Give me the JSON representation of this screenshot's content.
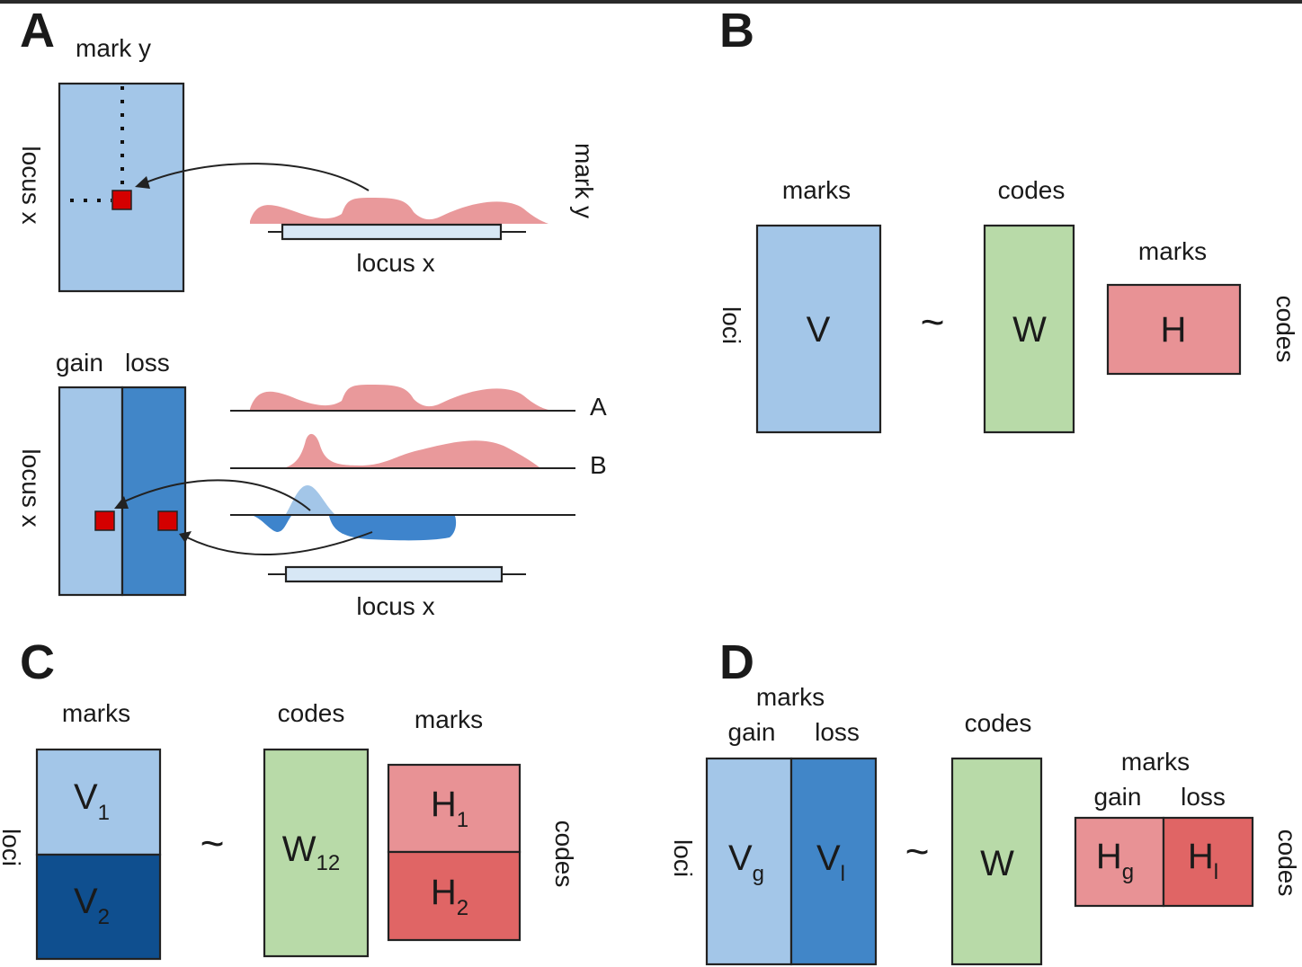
{
  "panels": {
    "A": {
      "label": "A",
      "top": {
        "mark_col": "mark y",
        "locus_row": "locus x",
        "side_mark": "mark y",
        "track_locus": "locus x"
      },
      "bottom": {
        "gain": "gain",
        "loss": "loss",
        "locus_row": "locus x",
        "track_A": "A",
        "track_B": "B",
        "track_locus": "locus x"
      }
    },
    "B": {
      "label": "B",
      "marks_left": "marks",
      "codes_top": "codes",
      "marks_right": "marks",
      "loci": "loci",
      "codes_side": "codes",
      "V": "V",
      "tilde": "~",
      "W": "W",
      "H": "H"
    },
    "C": {
      "label": "C",
      "marks_left": "marks",
      "codes_top": "codes",
      "marks_right": "marks",
      "loci": "loci",
      "codes_side": "codes",
      "V1": "V",
      "V1_sub": "1",
      "V2": "V",
      "V2_sub": "2",
      "tilde": "~",
      "W": "W",
      "W_sub": "12",
      "H1": "H",
      "H1_sub": "1",
      "H2": "H",
      "H2_sub": "2"
    },
    "D": {
      "label": "D",
      "marks_left": "marks",
      "gain_left": "gain",
      "loss_left": "loss",
      "codes_top": "codes",
      "marks_right": "marks",
      "gain_right": "gain",
      "loss_right": "loss",
      "loci": "loci",
      "codes_side": "codes",
      "Vg": "V",
      "Vg_sub": "g",
      "Vl": "V",
      "Vl_sub": "l",
      "tilde": "~",
      "W": "W",
      "Hg": "H",
      "Hg_sub": "g",
      "Hl": "H",
      "Hl_sub": "l"
    }
  },
  "colors": {
    "light_blue": "#a3c6e8",
    "mid_blue": "#4186c8",
    "dark_blue": "#0f4f8f",
    "green": "#b8daa8",
    "pink": "#e89295",
    "red": "#e06565",
    "marker_red": "#d40000"
  }
}
